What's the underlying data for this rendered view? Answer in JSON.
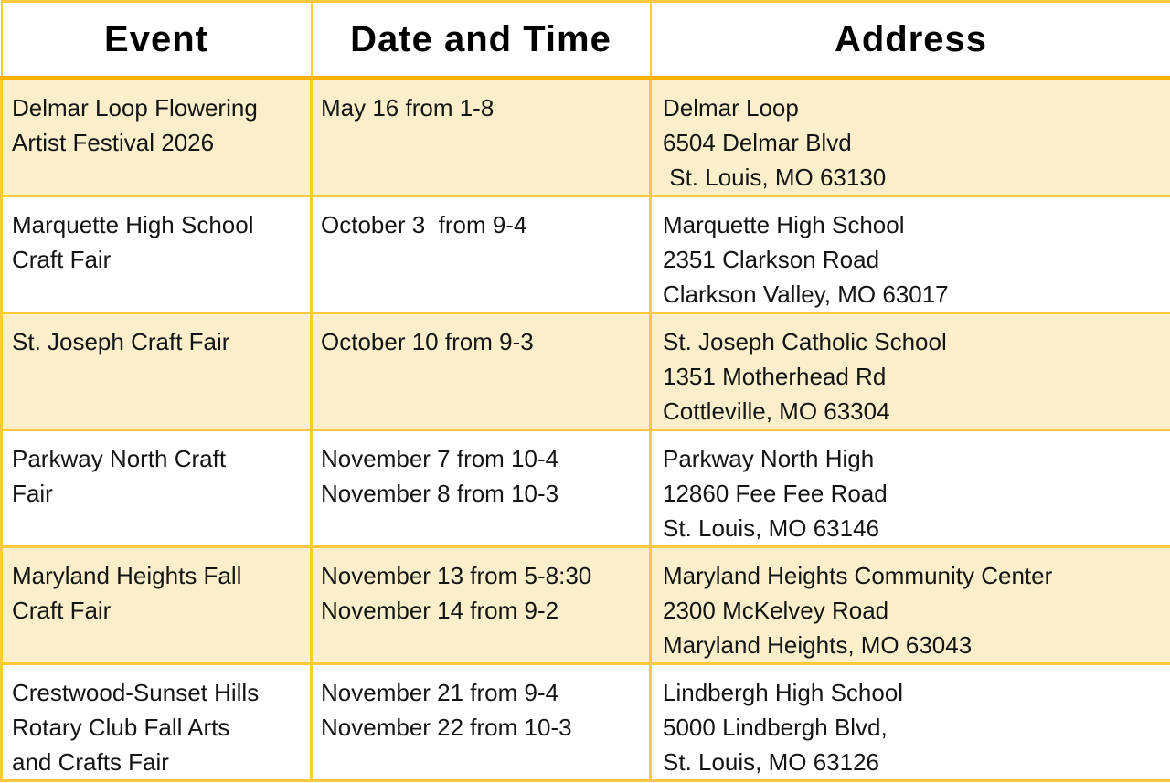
{
  "table": {
    "headers": [
      {
        "label": "Event"
      },
      {
        "label": "Date and Time"
      },
      {
        "label": "Address"
      }
    ],
    "rows": [
      {
        "shade": "cream",
        "event": [
          "Delmar Loop Flowering",
          "Artist Festival 2026"
        ],
        "date_time": [
          "May 16 from 1-8"
        ],
        "address": [
          "Delmar Loop",
          "6504 Delmar Blvd",
          " St. Louis, MO 63130"
        ]
      },
      {
        "shade": "white",
        "event": [
          "Marquette High School",
          "Craft Fair"
        ],
        "date_time": [
          "October 3  from 9-4"
        ],
        "address": [
          "Marquette High School",
          "2351 Clarkson Road",
          "Clarkson Valley, MO 63017"
        ]
      },
      {
        "shade": "cream",
        "event": [
          "St. Joseph Craft Fair"
        ],
        "date_time": [
          "October 10 from 9-3"
        ],
        "address": [
          "St. Joseph Catholic School",
          "1351 Motherhead Rd",
          "Cottleville, MO 63304"
        ]
      },
      {
        "shade": "white",
        "event": [
          "Parkway North Craft",
          "Fair"
        ],
        "date_time": [
          "November 7 from 10-4",
          "November 8 from 10-3"
        ],
        "address": [
          "Parkway North High",
          "12860 Fee Fee Road",
          "St. Louis, MO 63146"
        ]
      },
      {
        "shade": "cream",
        "event": [
          "Maryland Heights Fall",
          "Craft Fair"
        ],
        "date_time": [
          "November 13 from 5-8:30",
          "November 14 from 9-2"
        ],
        "address": [
          "Maryland Heights Community Center",
          "2300 McKelvey Road",
          "Maryland Heights, MO 63043"
        ]
      },
      {
        "shade": "white",
        "event": [
          "Crestwood-Sunset Hills",
          "Rotary Club Fall Arts",
          "and Crafts Fair"
        ],
        "date_time": [
          "November 21 from 9-4",
          "November 22 from 10-3"
        ],
        "address": [
          "Lindbergh High School",
          "5000 Lindbergh Blvd,",
          "St. Louis, MO 63126"
        ]
      }
    ]
  },
  "colors": {
    "border_gold": "#FFC93C",
    "header_rule": "#FFB100",
    "row_cream": "#FBEFCB",
    "row_white": "#FFFFFF",
    "text": "#141414"
  }
}
